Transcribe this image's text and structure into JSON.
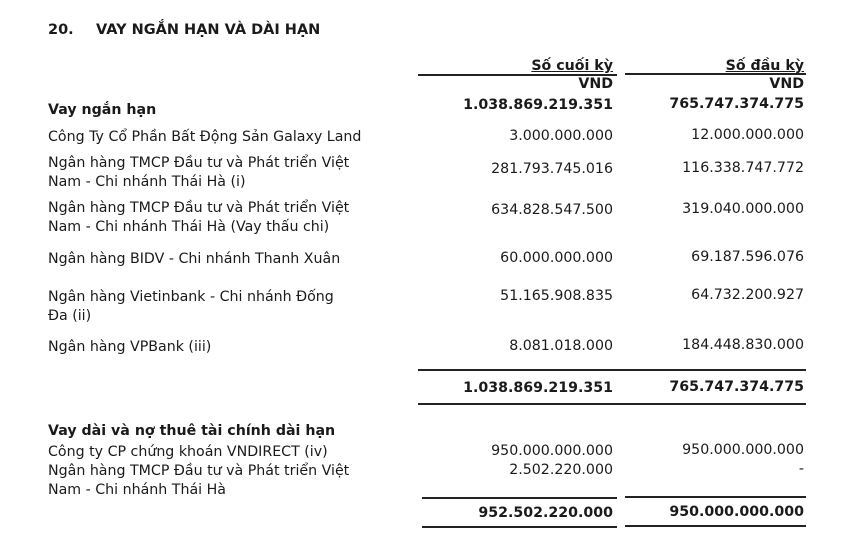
{
  "section": {
    "number": "20.",
    "title": "VAY NGẮN HẠN VÀ DÀI HẠN"
  },
  "columns": [
    {
      "header": "Số cuối kỳ",
      "unit": "VND"
    },
    {
      "header": "Số đầu kỳ",
      "unit": "VND"
    }
  ],
  "short_term": {
    "heading": "Vay ngắn hạn",
    "heading_values": [
      "1.038.869.219.351",
      "765.747.374.775"
    ],
    "rows": [
      {
        "label": [
          "Công Ty Cổ Phần Bất Động Sản Galaxy Land"
        ],
        "values": [
          "3.000.000.000",
          "12.000.000.000"
        ]
      },
      {
        "label": [
          "Ngân hàng TMCP Đầu tư và Phát triển Việt",
          "Nam - Chi nhánh Thái Hà (i)"
        ],
        "values": [
          "281.793.745.016",
          "116.338.747.772"
        ]
      },
      {
        "label": [
          "Ngân hàng TMCP Đầu tư và Phát triển Việt",
          "Nam - Chi nhánh Thái Hà (Vay thấu chi)"
        ],
        "values": [
          "634.828.547.500",
          "319.040.000.000"
        ]
      },
      {
        "label": [
          "Ngân hàng BIDV - Chi nhánh Thanh Xuân"
        ],
        "values": [
          "60.000.000.000",
          "69.187.596.076"
        ]
      },
      {
        "label": [
          "Ngân hàng Vietinbank - Chi nhánh Đống",
          "Đa (ii)"
        ],
        "values": [
          "51.165.908.835",
          "64.732.200.927"
        ]
      },
      {
        "label": [
          "Ngân hàng VPBank (iii)"
        ],
        "values": [
          "8.081.018.000",
          "184.448.830.000"
        ]
      }
    ],
    "total": [
      "1.038.869.219.351",
      "765.747.374.775"
    ]
  },
  "long_term": {
    "heading": "Vay dài và nợ thuê tài chính dài hạn",
    "rows": [
      {
        "label": [
          "Công ty CP chứng khoán VNDIRECT (iv)"
        ],
        "values": [
          "950.000.000.000",
          "950.000.000.000"
        ]
      },
      {
        "label": [
          "Ngân hàng TMCP Đầu tư và Phát triển Việt",
          "Nam - Chi nhánh Thái Hà"
        ],
        "values": [
          "2.502.220.000",
          "-"
        ]
      }
    ],
    "total": [
      "952.502.220.000",
      "950.000.000.000"
    ]
  }
}
